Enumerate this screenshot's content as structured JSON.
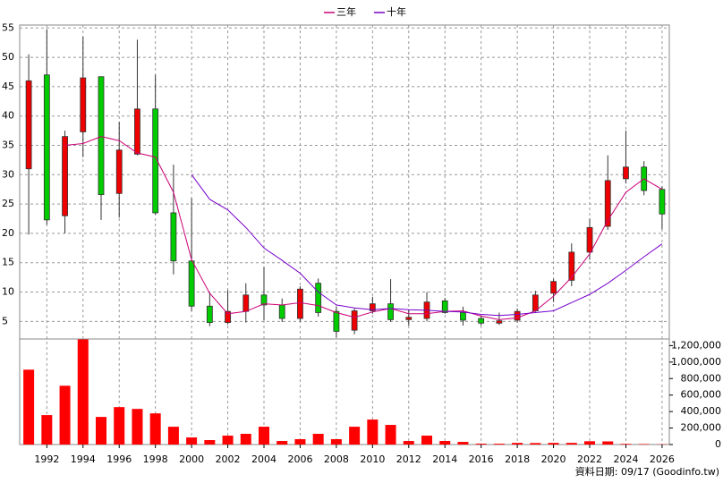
{
  "chart_data": {
    "type": "candlestick",
    "source": "資料日期: 09/17  (Goodinfo.tw)",
    "x": [
      1991,
      1992,
      1993,
      1994,
      1995,
      1996,
      1997,
      1998,
      1999,
      2000,
      2001,
      2002,
      2003,
      2004,
      2005,
      2006,
      2007,
      2008,
      2009,
      2010,
      2011,
      2012,
      2013,
      2014,
      2015,
      2016,
      2017,
      2018,
      2019,
      2020,
      2021,
      2022,
      2023,
      2024,
      2025,
      2026
    ],
    "open": [
      31,
      47,
      23,
      37.3,
      46.7,
      26.8,
      33.5,
      41.2,
      23.5,
      15.3,
      7.6,
      4.8,
      6.7,
      9.5,
      7.8,
      5.5,
      11.5,
      6.7,
      3.5,
      6.8,
      8,
      5.3,
      5.5,
      8.5,
      6.5,
      5.5,
      4.7,
      5.2,
      6.8,
      9.8,
      12,
      16.8,
      21.2,
      29.3,
      31.3,
      27.5
    ],
    "high": [
      50.5,
      54.8,
      37.5,
      53.5,
      46.7,
      39,
      53,
      47,
      31.7,
      26,
      10,
      10.3,
      11.5,
      14.3,
      8.9,
      11,
      12.3,
      7.5,
      7.2,
      9.2,
      12.2,
      7,
      10,
      9,
      7.5,
      6,
      6.5,
      7.2,
      10.2,
      12.2,
      18.3,
      22.5,
      33.3,
      37.5,
      32.3,
      28
    ],
    "low": [
      19.8,
      21.5,
      20,
      33,
      22.3,
      22.7,
      33.3,
      23.2,
      13,
      6.8,
      4.2,
      4.5,
      4.8,
      5.2,
      4.9,
      5,
      5.8,
      2.3,
      2.8,
      6.3,
      4.9,
      4.3,
      5,
      6.3,
      4.3,
      4.3,
      4.4,
      4.8,
      6.6,
      8.3,
      11,
      15.5,
      20.6,
      28.5,
      26.5,
      20.7
    ],
    "close": [
      46,
      22.3,
      36.5,
      46.5,
      26.6,
      34.2,
      41.2,
      23.5,
      15.3,
      7.6,
      4.8,
      6.7,
      9.5,
      7.8,
      5.5,
      10.5,
      6.5,
      3.3,
      6.8,
      8,
      5.3,
      5.7,
      8.3,
      6.5,
      5.2,
      4.7,
      5.1,
      6.7,
      9.5,
      11.8,
      16.8,
      21,
      29,
      31.3,
      27.3,
      23.3
    ],
    "up_color": "#ee0000",
    "down_color": "#00cc00",
    "series": [
      {
        "name": "三年",
        "color": "#cc0077",
        "values": [
          null,
          null,
          35,
          35.3,
          36.5,
          35.8,
          33.7,
          33,
          27,
          15.5,
          9.8,
          6.3,
          6.7,
          8,
          7.8,
          8.2,
          7.7,
          6.5,
          5.7,
          6.6,
          7.2,
          6.3,
          6.3,
          6.7,
          6.8,
          5.9,
          5.3,
          5.6,
          6.8,
          9.3,
          12.5,
          16.5,
          22.2,
          27,
          29.3,
          27.5
        ]
      },
      {
        "name": "十年",
        "color": "#7700cc",
        "values": [
          null,
          null,
          null,
          null,
          null,
          null,
          null,
          null,
          null,
          30,
          25.8,
          24,
          21,
          17.5,
          15.4,
          13.2,
          10,
          7.8,
          7.3,
          7,
          7.2,
          7,
          6.9,
          6.7,
          6.6,
          6.2,
          6,
          6.2,
          6.5,
          6.8,
          8.2,
          9.6,
          11.5,
          13.7,
          16,
          18.2
        ]
      }
    ],
    "xlim": [
      1990.5,
      2026.4
    ],
    "xticks": [
      1992,
      1994,
      1996,
      1998,
      2000,
      2002,
      2004,
      2006,
      2008,
      2010,
      2012,
      2014,
      2016,
      2018,
      2020,
      2022,
      2024,
      2026
    ],
    "ylim": [
      2,
      55.5
    ],
    "yticks": [
      5,
      10,
      15,
      20,
      25,
      30,
      35,
      40,
      45,
      50,
      55
    ],
    "grid": true,
    "legend": "top",
    "volume": {
      "color": "#ff0000",
      "values": [
        908000,
        357000,
        713000,
        1275000,
        335000,
        454000,
        432000,
        378000,
        216000,
        86000,
        54000,
        108000,
        130000,
        216000,
        43000,
        65000,
        130000,
        65000,
        216000,
        303000,
        238000,
        43000,
        108000,
        43000,
        32000,
        11000,
        10000,
        20000,
        18000,
        20000,
        20000,
        40000,
        38000,
        8000,
        6000,
        3000
      ],
      "ylim": [
        0,
        1280000
      ],
      "yticks": [
        0,
        {
          "value": 200000,
          "label": "200,000"
        },
        {
          "value": 400000,
          "label": "400,000"
        },
        {
          "value": 600000,
          "label": "600,000"
        },
        {
          "value": 800000,
          "label": "800,000"
        },
        {
          "value": 1000000,
          "label": "1,000,000"
        },
        {
          "value": 1200000,
          "label": "1,200,000"
        }
      ]
    }
  }
}
